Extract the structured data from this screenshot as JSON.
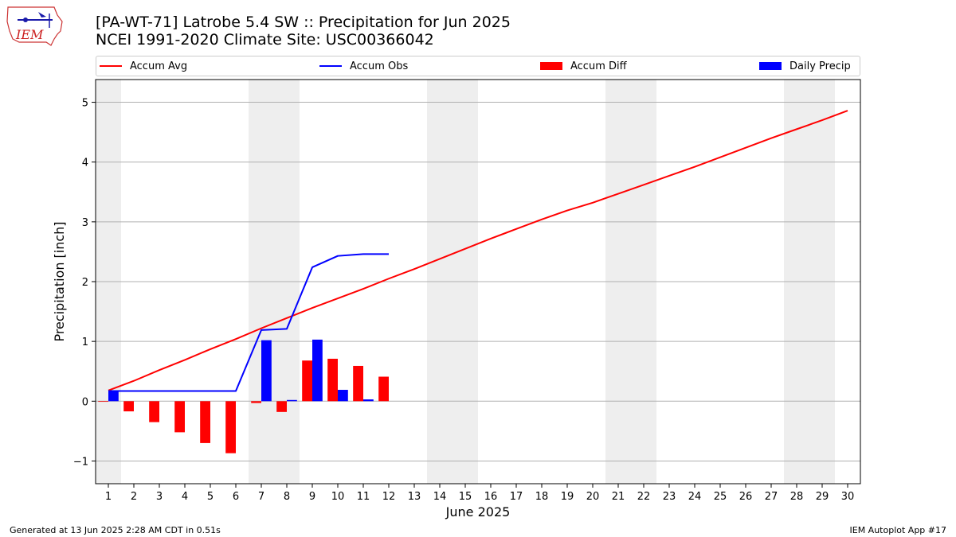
{
  "header": {
    "title_line1": "[PA-WT-71] Latrobe 5.4 SW :: Precipitation for Jun 2025",
    "title_line2": "NCEI 1991-2020 Climate Site: USC00366042",
    "logo_text": "IEM"
  },
  "legend": {
    "items": [
      {
        "label": "Accum Avg",
        "kind": "line",
        "color": "#ff0000"
      },
      {
        "label": "Accum Obs",
        "kind": "line",
        "color": "#0000ff"
      },
      {
        "label": "Accum Diff",
        "kind": "patch",
        "color": "#ff0000"
      },
      {
        "label": "Daily Precip",
        "kind": "patch",
        "color": "#0000ff"
      }
    ]
  },
  "footer": {
    "left": "Generated at 13 Jun 2025 2:28 AM CDT in 0.51s",
    "right": "IEM Autoplot App #17"
  },
  "chart_data": {
    "type": "bar",
    "xlabel": "June 2025",
    "ylabel": "Precipitation [inch]",
    "xlim": [
      0.5,
      30.5
    ],
    "ylim": [
      -1.38,
      5.38
    ],
    "yticks": [
      -1,
      0,
      1,
      2,
      3,
      4,
      5
    ],
    "ytick_labels": [
      "−1",
      "0",
      "1",
      "2",
      "3",
      "4",
      "5"
    ],
    "xticks": [
      1,
      2,
      3,
      4,
      5,
      6,
      7,
      8,
      9,
      10,
      11,
      12,
      13,
      14,
      15,
      16,
      17,
      18,
      19,
      20,
      21,
      22,
      23,
      24,
      25,
      26,
      27,
      28,
      29,
      30
    ],
    "weekend_bands": [
      [
        0.5,
        1.5
      ],
      [
        6.5,
        8.5
      ],
      [
        13.5,
        15.5
      ],
      [
        20.5,
        22.5
      ],
      [
        27.5,
        29.5
      ]
    ],
    "band_color": "#eeeeee",
    "grid": "horizontal",
    "legend_position": "top",
    "series": [
      {
        "name": "Accum Avg",
        "kind": "line",
        "color": "#ff0000",
        "x": [
          1,
          2,
          3,
          4,
          5,
          6,
          7,
          8,
          9,
          10,
          11,
          12,
          13,
          14,
          15,
          16,
          17,
          18,
          19,
          20,
          21,
          22,
          23,
          24,
          25,
          26,
          27,
          28,
          29,
          30
        ],
        "values": [
          0.18,
          0.34,
          0.52,
          0.69,
          0.87,
          1.04,
          1.22,
          1.39,
          1.56,
          1.72,
          1.88,
          2.05,
          2.21,
          2.38,
          2.55,
          2.72,
          2.88,
          3.04,
          3.19,
          3.32,
          3.47,
          3.62,
          3.77,
          3.92,
          4.08,
          4.24,
          4.4,
          4.55,
          4.7,
          4.86
        ]
      },
      {
        "name": "Accum Obs",
        "kind": "line",
        "color": "#0000ff",
        "x": [
          1,
          2,
          3,
          4,
          5,
          6,
          7,
          8,
          9,
          10,
          11,
          12
        ],
        "values": [
          0.17,
          0.17,
          0.17,
          0.17,
          0.17,
          0.17,
          1.19,
          1.21,
          2.24,
          2.43,
          2.46,
          2.46
        ]
      },
      {
        "name": "Accum Diff",
        "kind": "bar",
        "color": "#ff0000",
        "x": [
          1,
          2,
          3,
          4,
          5,
          6,
          7,
          8,
          9,
          10,
          11,
          12
        ],
        "values": [
          -0.01,
          -0.17,
          -0.35,
          -0.52,
          -0.7,
          -0.87,
          -0.03,
          -0.18,
          0.68,
          0.71,
          0.59,
          0.41
        ]
      },
      {
        "name": "Daily Precip",
        "kind": "bar",
        "color": "#0000ff",
        "x": [
          1,
          2,
          3,
          4,
          5,
          6,
          7,
          8,
          9,
          10,
          11,
          12
        ],
        "values": [
          0.17,
          0,
          0,
          0,
          0,
          0,
          1.02,
          0.02,
          1.03,
          0.19,
          0.03,
          0
        ]
      }
    ]
  }
}
